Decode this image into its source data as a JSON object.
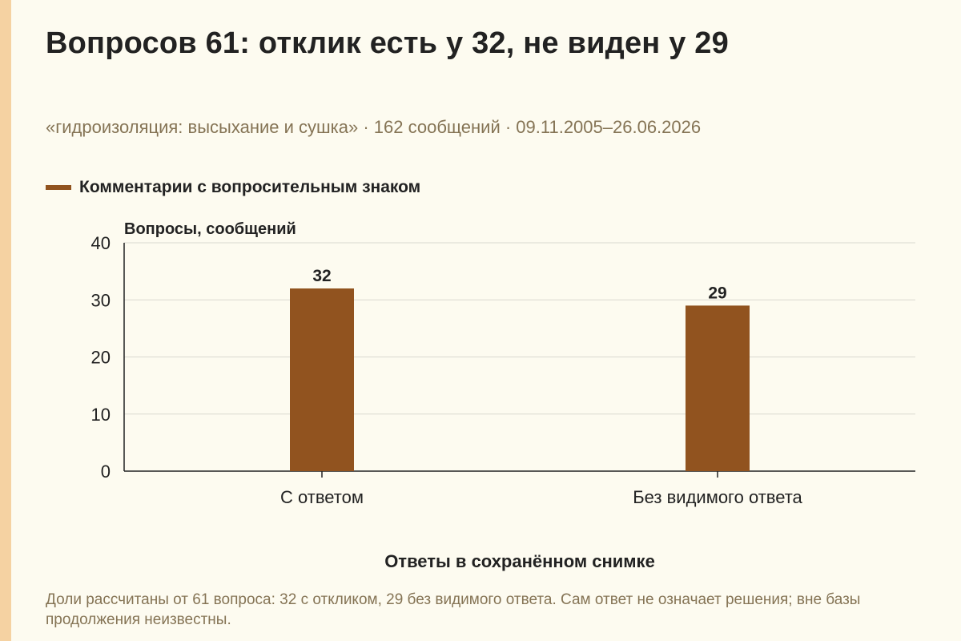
{
  "header": {
    "title": "Вопросов 61: отклик есть у 32, не виден у 29",
    "subtitle": "«гидроизоляция: высыхание и сушка» · 162 сообщений · 09.11.2005–26.06.2026"
  },
  "footnote": "Доли рассчитаны от 61 вопроса: 32 с откликом, 29 без видимого ответа. Сам ответ не означает решения; вне базы продолжения неизвестны.",
  "colors": {
    "bar": "#91531f",
    "grid": "#d9d9d0",
    "axis": "#222222",
    "background": "#fdfbf0",
    "accent_stripe": "#f5d2a2"
  },
  "chart_data": {
    "type": "bar",
    "categories": [
      "С ответом",
      "Без видимого ответа"
    ],
    "series": [
      {
        "name": "Комментарии с вопросительным знаком",
        "values": [
          32,
          29
        ],
        "data_labels": [
          "32",
          "29"
        ]
      }
    ],
    "xlabel": "Ответы в сохранённом снимке",
    "ylabel": "Вопросы, сообщений",
    "ylim": [
      0,
      40
    ],
    "yticks": [
      0,
      10,
      20,
      30,
      40
    ],
    "grid": true,
    "legend_position": "top-left"
  }
}
